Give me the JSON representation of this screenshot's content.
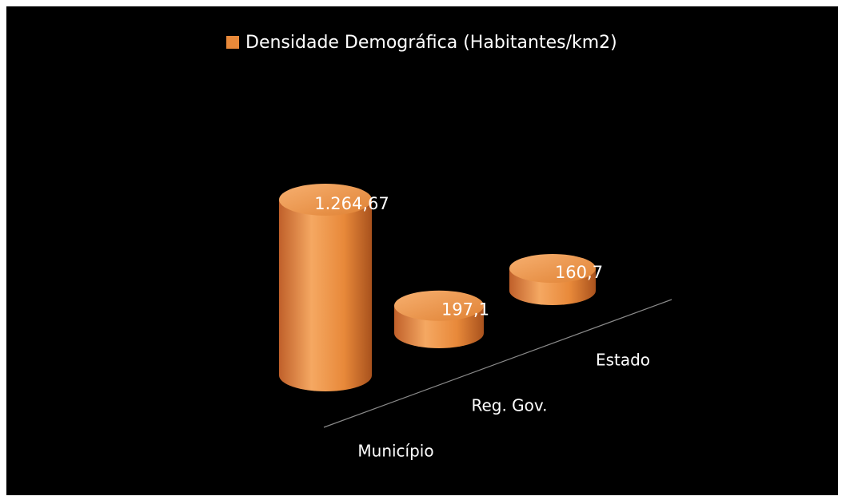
{
  "chart_data": {
    "type": "bar",
    "categories": [
      "Município",
      "Reg. Gov.",
      "Estado"
    ],
    "series": [
      {
        "name": "Densidade Demográfica (Habitantes/km2)",
        "color": "#e8893a",
        "values": [
          1264.67,
          197.1,
          160.7
        ],
        "value_labels": [
          "1.264,67",
          "197,1",
          "160,7"
        ]
      }
    ]
  }
}
